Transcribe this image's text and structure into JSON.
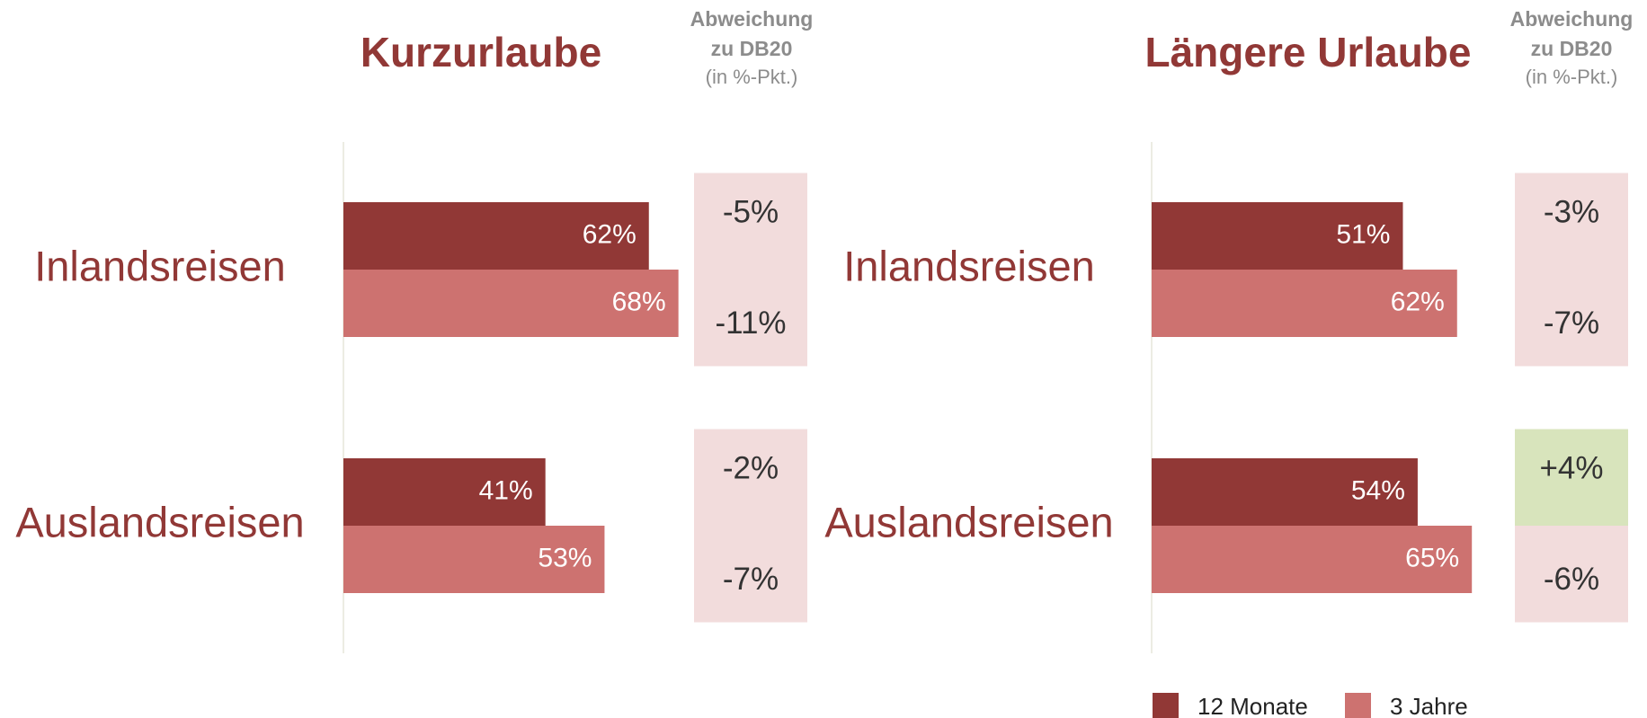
{
  "chart_data": [
    {
      "type": "bar",
      "orientation": "horizontal",
      "title": "Kurzurlaube",
      "categories": [
        "Inlandsreisen",
        "Auslandsreisen"
      ],
      "series": [
        {
          "color": "#913836",
          "values": [
            62,
            41
          ],
          "value_labels": [
            "62%",
            "41%"
          ]
        },
        {
          "color": "#cd7270",
          "values": [
            68,
            53
          ],
          "value_labels": [
            "68%",
            "53%"
          ]
        }
      ],
      "deviation_title": [
        "Abweichung",
        "zu DB20"
      ],
      "deviation_subtitle": "(in %-Pkt.)",
      "deviations": [
        {
          "values": [
            -5,
            -2
          ],
          "value_labels": [
            "-5%",
            "-2%"
          ]
        },
        {
          "values": [
            -11,
            -7
          ],
          "value_labels": [
            "-11%",
            "-7%"
          ]
        }
      ],
      "deviation_colors": {
        "negative": "#f2dcdc",
        "positive": "#d8e4bc"
      }
    },
    {
      "type": "bar",
      "orientation": "horizontal",
      "title": "Längere Urlaube",
      "categories": [
        "Inlandsreisen",
        "Auslandsreisen"
      ],
      "series": [
        {
          "name": "12 Monate",
          "color": "#913836",
          "values": [
            51,
            54
          ],
          "value_labels": [
            "51%",
            "54%"
          ]
        },
        {
          "name": "3 Jahre",
          "color": "#cd7270",
          "values": [
            62,
            65
          ],
          "value_labels": [
            "62%",
            "65%"
          ]
        }
      ],
      "deviation_title": [
        "Abweichung",
        "zu DB20"
      ],
      "deviation_subtitle": "(in %-Pkt.)",
      "deviations": [
        {
          "values": [
            -3,
            4
          ],
          "value_labels": [
            "-3%",
            "+4%"
          ]
        },
        {
          "values": [
            -7,
            -6
          ],
          "value_labels": [
            "-7%",
            "-6%"
          ]
        }
      ],
      "deviation_colors": {
        "negative": "#f2dcdc",
        "positive": "#d8e4bc"
      },
      "legend": "bottom-right"
    }
  ]
}
